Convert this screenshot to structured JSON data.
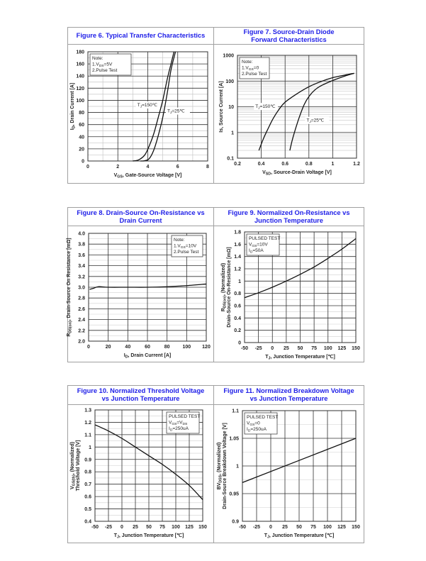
{
  "chart_data": [
    {
      "id": "fig6",
      "type": "line",
      "title": "Figure 6. Typical Transfer Characteristics",
      "xlabel": [
        {
          "t": "V"
        },
        {
          "sub": "GS"
        },
        {
          "t": ", Gate-Source Voltage [V]"
        }
      ],
      "ylabel": [
        [
          {
            "t": "I"
          },
          {
            "sub": "D"
          },
          {
            "t": ", Drain Current [A]"
          }
        ]
      ],
      "xlim": [
        0,
        8
      ],
      "ylim": [
        0,
        180
      ],
      "yscale": "linear",
      "xticks": [
        0,
        2,
        4,
        6,
        8
      ],
      "yticks": [
        0,
        20,
        40,
        60,
        80,
        100,
        120,
        140,
        160,
        180
      ],
      "grid": true,
      "legend": "top-left",
      "note": [
        [
          {
            "t": "Note:"
          }
        ],
        [
          {
            "t": "1.V"
          },
          {
            "sub": "DS"
          },
          {
            "t": "=5V"
          }
        ],
        [
          {
            "t": "2.Pulse Test"
          }
        ]
      ],
      "series": [
        {
          "name": "Tj=150℃",
          "label": [
            {
              "t": "T"
            },
            {
              "sub": "J"
            },
            {
              "t": "=150℃"
            }
          ],
          "label_at": [
            3.3,
            90
          ],
          "points": [
            [
              3.0,
              0
            ],
            [
              3.4,
              2
            ],
            [
              3.8,
              10
            ],
            [
              4.1,
              25
            ],
            [
              4.4,
              45
            ],
            [
              4.7,
              72
            ],
            [
              5.0,
              100
            ],
            [
              5.3,
              135
            ],
            [
              5.55,
              160
            ],
            [
              5.75,
              180
            ]
          ]
        },
        {
          "name": "Tj=25℃",
          "label": [
            {
              "t": "T"
            },
            {
              "sub": "J"
            },
            {
              "t": "=25℃"
            }
          ],
          "label_at": [
            5.3,
            80
          ],
          "points": [
            [
              3.5,
              0
            ],
            [
              3.8,
              0.5
            ],
            [
              4.1,
              4
            ],
            [
              4.4,
              18
            ],
            [
              4.7,
              42
            ],
            [
              5.0,
              72
            ],
            [
              5.3,
              112
            ],
            [
              5.55,
              150
            ],
            [
              5.85,
              180
            ]
          ]
        }
      ]
    },
    {
      "id": "fig7",
      "type": "line",
      "title": "Figure 7. Source-Drain Diode Forward Characteristics",
      "xlabel": [
        {
          "t": "V"
        },
        {
          "sub": "SD"
        },
        {
          "t": ", Source-Drain Voltage [V]"
        }
      ],
      "ylabel": [
        [
          {
            "t": "Is, Source Current [A]"
          }
        ]
      ],
      "xlim": [
        0.2,
        1.2
      ],
      "ylim": [
        0.1,
        1000
      ],
      "yscale": "log",
      "xticks": [
        0.2,
        0.4,
        0.6,
        0.8,
        1,
        1.2
      ],
      "yticks": [
        0.1,
        1,
        10,
        100,
        1000
      ],
      "grid": true,
      "legend": "top-left",
      "note": [
        [
          {
            "t": "Note:"
          }
        ],
        [
          {
            "t": "1.V"
          },
          {
            "sub": "GS"
          },
          {
            "t": "=0"
          }
        ],
        [
          {
            "t": "2.Pulse Test"
          }
        ]
      ],
      "series": [
        {
          "name": "Tj=150℃",
          "label": [
            {
              "t": "T"
            },
            {
              "sub": "J"
            },
            {
              "t": "=150℃"
            }
          ],
          "label_at": [
            0.35,
            9
          ],
          "points": [
            [
              0.38,
              0.2
            ],
            [
              0.42,
              0.6
            ],
            [
              0.46,
              1.5
            ],
            [
              0.5,
              3.5
            ],
            [
              0.55,
              8
            ],
            [
              0.6,
              15
            ],
            [
              0.7,
              32
            ],
            [
              0.8,
              60
            ],
            [
              0.9,
              95
            ],
            [
              1.0,
              135
            ],
            [
              1.1,
              170
            ],
            [
              1.18,
              200
            ]
          ]
        },
        {
          "name": "Tj=25℃",
          "label": [
            {
              "t": "T"
            },
            {
              "sub": "J"
            },
            {
              "t": "=25℃"
            }
          ],
          "label_at": [
            0.78,
            2.6
          ],
          "points": [
            [
              0.64,
              0.2
            ],
            [
              0.66,
              0.5
            ],
            [
              0.69,
              1.5
            ],
            [
              0.72,
              4
            ],
            [
              0.76,
              12
            ],
            [
              0.8,
              25
            ],
            [
              0.85,
              45
            ],
            [
              0.9,
              65
            ],
            [
              1.0,
              105
            ],
            [
              1.1,
              155
            ],
            [
              1.18,
              200
            ]
          ]
        }
      ]
    },
    {
      "id": "fig8",
      "type": "line",
      "title": "Figure 8. Drain-Source On-Resistance vs Drain Current",
      "xlabel": [
        {
          "t": "I"
        },
        {
          "sub": "D"
        },
        {
          "t": ", Drain Current [A]"
        }
      ],
      "ylabel": [
        [
          {
            "t": "R"
          },
          {
            "sub": "DS(on)"
          },
          {
            "t": ", Drain-Source On Resistance [mΩ]"
          }
        ]
      ],
      "xlim": [
        0,
        120
      ],
      "ylim": [
        2.0,
        4.0
      ],
      "yscale": "linear",
      "xticks": [
        0,
        20,
        40,
        60,
        80,
        100,
        120
      ],
      "yticks": [
        2.0,
        2.2,
        2.4,
        2.6,
        2.8,
        3.0,
        3.2,
        3.4,
        3.6,
        3.8,
        4.0
      ],
      "ytick_decimals": 1,
      "grid": true,
      "legend": "top-right",
      "note": [
        [
          {
            "t": "Note:"
          }
        ],
        [
          {
            "t": "1.V"
          },
          {
            "sub": "GS"
          },
          {
            "t": "=10V"
          }
        ],
        [
          {
            "t": "2.Pulse Test"
          }
        ]
      ],
      "series": [
        {
          "name": "RDS(on)",
          "points": [
            [
              1,
              2.96
            ],
            [
              5,
              2.98
            ],
            [
              10,
              3.01
            ],
            [
              20,
              3.0
            ],
            [
              40,
              3.0
            ],
            [
              60,
              3.0
            ],
            [
              80,
              3.01
            ],
            [
              100,
              3.03
            ],
            [
              120,
              3.06
            ]
          ]
        }
      ]
    },
    {
      "id": "fig9",
      "type": "line",
      "title": "Figure 9. Normalized On-Resistance vs Junction Temperature",
      "xlabel": [
        {
          "t": "T"
        },
        {
          "sub": "J"
        },
        {
          "t": ", Junction Temperature [℃]"
        }
      ],
      "ylabel": [
        [
          {
            "t": "R"
          },
          {
            "sub": "DS(on)"
          },
          {
            "t": ", (Normalized)"
          }
        ],
        [
          {
            "t": "Drain-Source On-Resistance [mΩ]"
          }
        ]
      ],
      "xlim": [
        -50,
        150
      ],
      "ylim": [
        0,
        1.8
      ],
      "yscale": "linear",
      "xticks": [
        -50,
        -25,
        0,
        25,
        50,
        75,
        100,
        125,
        150
      ],
      "yticks": [
        0,
        0.2,
        0.4,
        0.6,
        0.8,
        1,
        1.2,
        1.4,
        1.6,
        1.8
      ],
      "grid": true,
      "legend": "top-left",
      "note": [
        [
          {
            "t": "PULSED TEST"
          }
        ],
        [
          {
            "t": "V"
          },
          {
            "sub": "GS"
          },
          {
            "t": "=10V"
          }
        ],
        [
          {
            "t": "I"
          },
          {
            "sub": "D"
          },
          {
            "t": "=50A"
          }
        ]
      ],
      "series": [
        {
          "name": "Normalized RDS(on)",
          "points": [
            [
              -50,
              0.73
            ],
            [
              -25,
              0.81
            ],
            [
              0,
              0.9
            ],
            [
              25,
              1.0
            ],
            [
              50,
              1.11
            ],
            [
              75,
              1.23
            ],
            [
              100,
              1.37
            ],
            [
              125,
              1.52
            ],
            [
              150,
              1.69
            ]
          ]
        }
      ]
    },
    {
      "id": "fig10",
      "type": "line",
      "title": "Figure 10. Normalized Threshold Voltage vs Junction Temperature",
      "xlabel": [
        {
          "t": "T"
        },
        {
          "sub": "J"
        },
        {
          "t": ", Junction Temperature [℃]"
        }
      ],
      "ylabel": [
        [
          {
            "t": "V"
          },
          {
            "sub": "GS(th)"
          },
          {
            "t": ", (Normalized)"
          }
        ],
        [
          {
            "t": "Threshold Voltage [V]"
          }
        ]
      ],
      "xlim": [
        -50,
        150
      ],
      "ylim": [
        0.4,
        1.3
      ],
      "yscale": "linear",
      "xticks": [
        -50,
        -25,
        0,
        25,
        50,
        75,
        100,
        125,
        150
      ],
      "yticks": [
        0.4,
        0.5,
        0.6,
        0.7,
        0.8,
        0.9,
        1,
        1.1,
        1.2,
        1.3
      ],
      "grid": true,
      "legend": "top-right",
      "note": [
        [
          {
            "t": "PULSED TEST"
          }
        ],
        [
          {
            "t": "V"
          },
          {
            "sub": "GS"
          },
          {
            "t": "=V"
          },
          {
            "sub": "DS"
          }
        ],
        [
          {
            "t": "I"
          },
          {
            "sub": "D"
          },
          {
            "t": "=250uA"
          }
        ]
      ],
      "series": [
        {
          "name": "Normalized VGS(th)",
          "points": [
            [
              -50,
              1.18
            ],
            [
              -25,
              1.13
            ],
            [
              0,
              1.07
            ],
            [
              25,
              1.0
            ],
            [
              50,
              0.93
            ],
            [
              75,
              0.86
            ],
            [
              100,
              0.78
            ],
            [
              125,
              0.69
            ],
            [
              150,
              0.575
            ]
          ]
        }
      ]
    },
    {
      "id": "fig11",
      "type": "line",
      "title": "Figure 11. Normalized Breakdown Voltage vs Junction Temperature",
      "xlabel": [
        {
          "t": "T"
        },
        {
          "sub": "J"
        },
        {
          "t": ", Junction Temperature [℃]"
        }
      ],
      "ylabel": [
        [
          {
            "t": "BV"
          },
          {
            "sub": "DSS"
          },
          {
            "t": ", (Normalized)"
          }
        ],
        [
          {
            "t": "Drain-Source Breakdown Voltage [V]"
          }
        ]
      ],
      "xlim": [
        -50,
        150
      ],
      "ylim": [
        0.9,
        1.1
      ],
      "yscale": "linear",
      "xticks": [
        -50,
        -25,
        0,
        25,
        50,
        75,
        100,
        125,
        150
      ],
      "yticks": [
        0.9,
        0.95,
        1,
        1.05,
        1.1
      ],
      "grid": true,
      "legend": "top-left",
      "note": [
        [
          {
            "t": "PULSED TEST"
          }
        ],
        [
          {
            "t": "V"
          },
          {
            "sub": "GS"
          },
          {
            "t": "=0"
          }
        ],
        [
          {
            "t": "I"
          },
          {
            "sub": "D"
          },
          {
            "t": "=250uA"
          }
        ]
      ],
      "series": [
        {
          "name": "Normalized BVDSS",
          "points": [
            [
              -50,
              0.97
            ],
            [
              150,
              1.05
            ]
          ]
        }
      ]
    }
  ]
}
